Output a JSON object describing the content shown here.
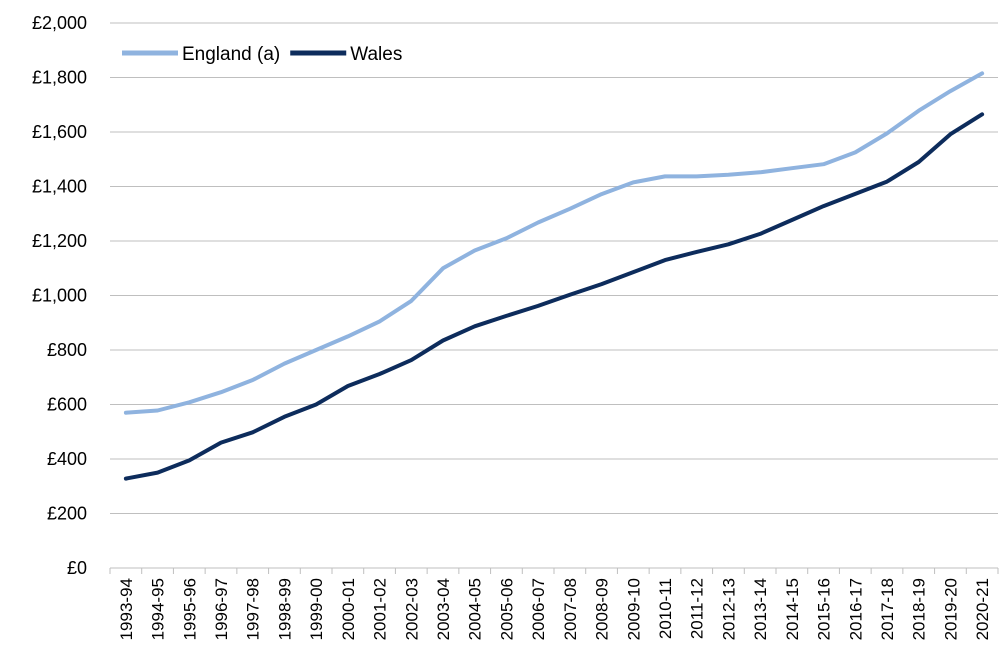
{
  "chart_data": {
    "type": "line",
    "title": "",
    "xlabel": "",
    "ylabel": "",
    "categories": [
      "1993-94",
      "1994-95",
      "1995-96",
      "1996-97",
      "1997-98",
      "1998-99",
      "1999-00",
      "2000-01",
      "2001-02",
      "2002-03",
      "2003-04",
      "2004-05",
      "2005-06",
      "2006-07",
      "2007-08",
      "2008-09",
      "2009-10",
      "2010-11",
      "2011-12",
      "2012-13",
      "2013-14",
      "2014-15",
      "2015-16",
      "2016-17",
      "2017-18",
      "2018-19",
      "2019-20",
      "2020-21"
    ],
    "series": [
      {
        "name": "England (a)",
        "color": "#8fb3df",
        "values": [
          570,
          578,
          608,
          645,
          690,
          750,
          800,
          850,
          905,
          980,
          1100,
          1165,
          1210,
          1268,
          1318,
          1372,
          1415,
          1437,
          1437,
          1443,
          1452,
          1467,
          1482,
          1525,
          1595,
          1678,
          1750,
          1815
        ]
      },
      {
        "name": "Wales",
        "color": "#0d2c5c",
        "values": [
          328,
          350,
          395,
          460,
          498,
          555,
          600,
          668,
          712,
          763,
          835,
          887,
          925,
          962,
          1003,
          1042,
          1086,
          1130,
          1160,
          1188,
          1226,
          1277,
          1328,
          1373,
          1418,
          1490,
          1592,
          1665
        ]
      }
    ],
    "ylim": [
      0,
      2000
    ],
    "ytick_step": 200,
    "ytick_labels": [
      "£0",
      "£200",
      "£400",
      "£600",
      "£800",
      "£1,000",
      "£1,200",
      "£1,400",
      "£1,600",
      "£1,800",
      "£2,000"
    ],
    "grid": true,
    "grid_color": "#bfbfbf",
    "legend_position": "top-left"
  }
}
